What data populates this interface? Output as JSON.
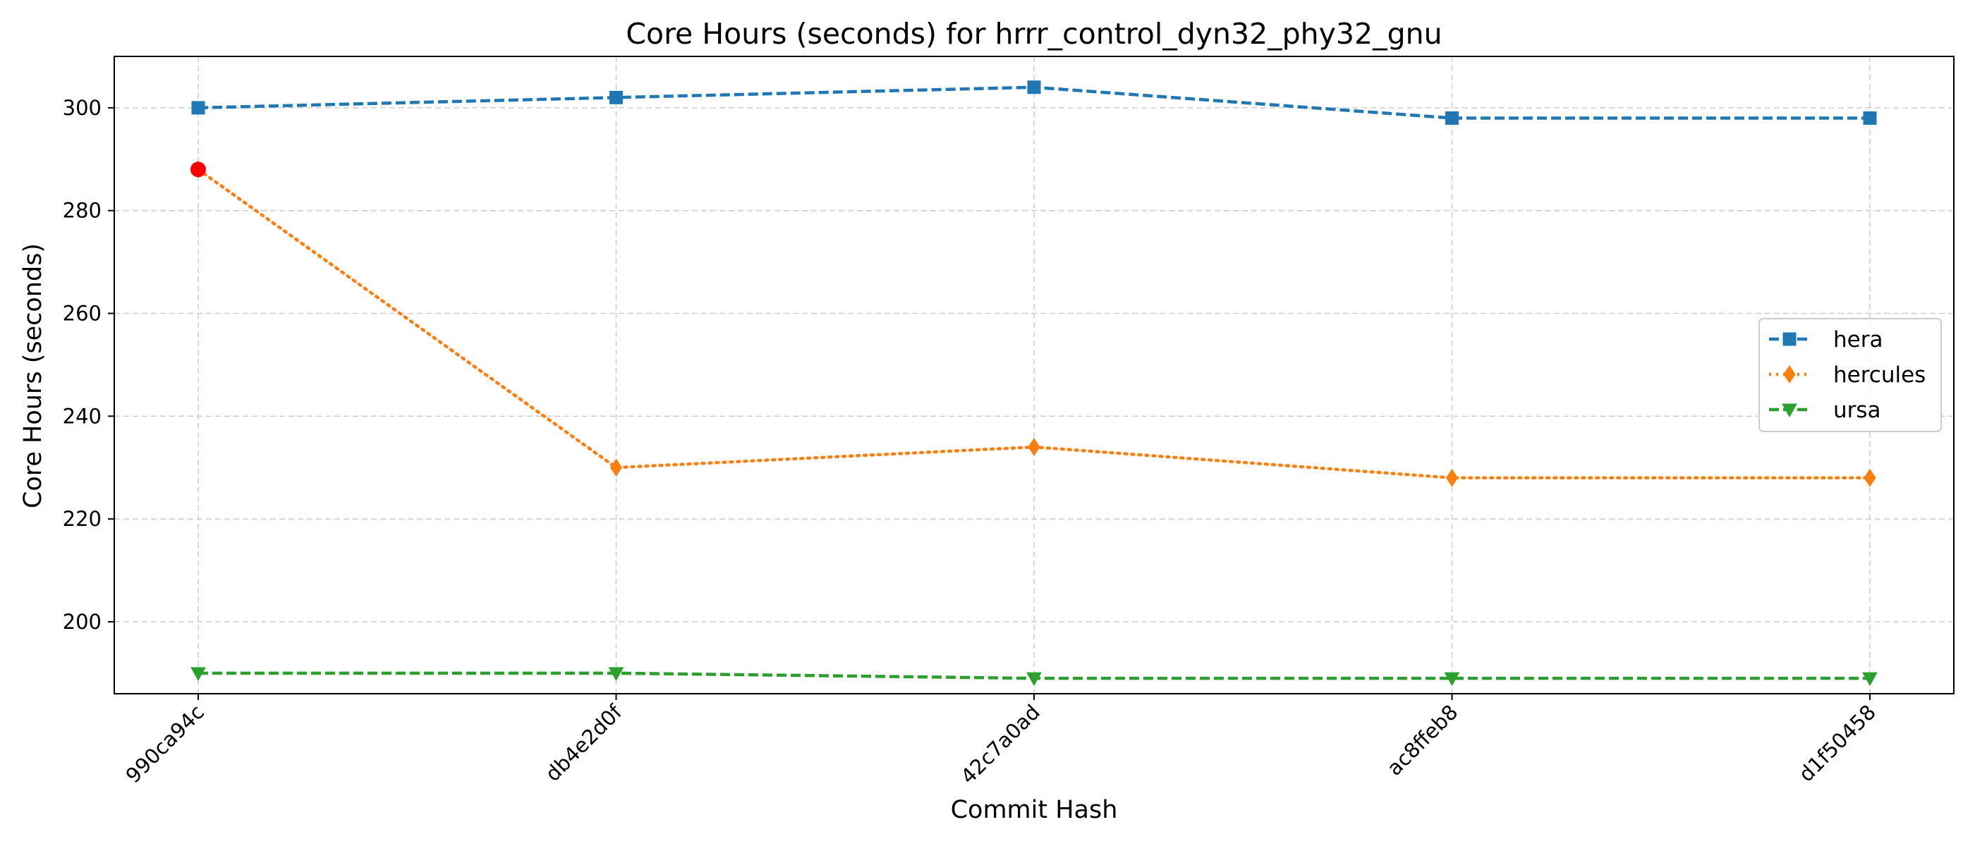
{
  "chart_data": {
    "type": "line",
    "title": "Core Hours (seconds) for hrrr_control_dyn32_phy32_gnu",
    "xlabel": "Commit Hash",
    "ylabel": "Core Hours (seconds)",
    "categories": [
      "990ca94c",
      "db4e2d0f",
      "42c7a0ad",
      "ac8ffeb8",
      "d1f50458"
    ],
    "ylim": [
      186,
      310
    ],
    "yticks": [
      200,
      220,
      240,
      260,
      280,
      300
    ],
    "grid": true,
    "legend_position": "center-right",
    "series": [
      {
        "name": "hera",
        "values": [
          300,
          302,
          304,
          298,
          298
        ],
        "color": "#1f77b4",
        "marker": "square",
        "linestyle": "dashed"
      },
      {
        "name": "hercules",
        "values": [
          288,
          230,
          234,
          228,
          228
        ],
        "color": "#ff7f0e",
        "marker": "thin-diamond",
        "linestyle": "dotted"
      },
      {
        "name": "ursa",
        "values": [
          190,
          190,
          189,
          189,
          189
        ],
        "color": "#2ca02c",
        "marker": "triangle-down",
        "linestyle": "dashed"
      }
    ],
    "highlight": {
      "series": "hercules",
      "category": "990ca94c",
      "value": 288,
      "color": "#ff0000"
    }
  }
}
